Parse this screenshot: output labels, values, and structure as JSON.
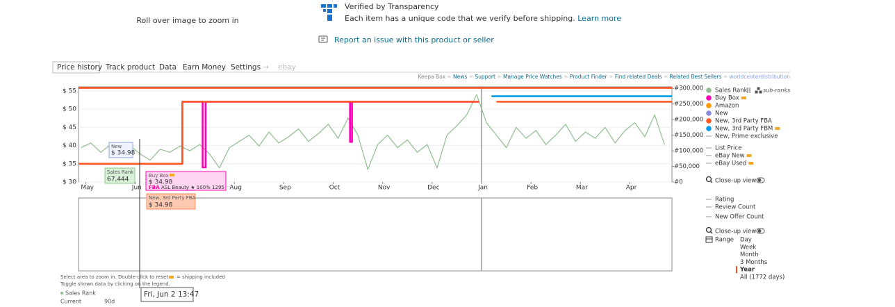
{
  "image_hint": "Roll over image to zoom in",
  "transparency": {
    "title": "Verified by Transparency",
    "text": "Each item has a unique code that we verify before shipping.",
    "link": "Learn more"
  },
  "report_link": "Report an issue with this product or seller",
  "tabs": [
    "Price history",
    "Track product",
    "Data",
    "Earn Money",
    "Settings",
    "→",
    "ebay"
  ],
  "links": [
    "Keepa Box",
    "News",
    "Support",
    "Manage Price Watches",
    "Product Finder",
    "Find related Deals",
    "Related Best Sellers",
    "worldcenterdistribution"
  ],
  "chart_data": {
    "type": "line",
    "xlim": [
      -0.15,
      11.85
    ],
    "xticks": [
      {
        "value": 0,
        "label": "May"
      },
      {
        "value": 1,
        "label": "Jun"
      },
      {
        "value": 3,
        "label": "Aug"
      },
      {
        "value": 4,
        "label": "Sep"
      },
      {
        "value": 5,
        "label": "Oct"
      },
      {
        "value": 6,
        "label": "Nov"
      },
      {
        "value": 7,
        "label": "Dec"
      },
      {
        "value": 8,
        "label": "Jan"
      },
      {
        "value": 9,
        "label": "Feb"
      },
      {
        "value": 10,
        "label": "Mar"
      },
      {
        "value": 11,
        "label": "Apr"
      }
    ],
    "ylim": [
      30,
      56.1
    ],
    "yticks": [
      {
        "value": 30,
        "label": "$ 30"
      },
      {
        "value": 35,
        "label": "$ 35"
      },
      {
        "value": 40,
        "label": "$ 40"
      },
      {
        "value": 45,
        "label": "$ 45"
      },
      {
        "value": 50,
        "label": "$ 50"
      },
      {
        "value": 55,
        "label": "$ 55"
      }
    ],
    "y2lim": [
      0,
      305000
    ],
    "y2ticks": [
      {
        "value": 0,
        "label": "#0"
      },
      {
        "value": 50000,
        "label": "#50,000"
      },
      {
        "value": 100000,
        "label": "#100,000"
      },
      {
        "value": 150000,
        "label": "#150,000"
      },
      {
        "value": 200000,
        "label": "#200,000"
      },
      {
        "value": 250000,
        "label": "#250,000"
      },
      {
        "value": 300000,
        "label": "#300,000"
      }
    ],
    "grid": true,
    "series": [
      {
        "name": "Sales Rank",
        "color": "#8fbc8f",
        "axis": "y2",
        "x": [
          -0.1,
          0.1,
          0.3,
          0.5,
          0.7,
          0.9,
          1.1,
          1.3,
          1.5,
          1.7,
          1.9,
          2.1,
          2.3,
          2.5,
          2.7,
          2.9,
          3.1,
          3.3,
          3.5,
          3.7,
          3.9,
          4.1,
          4.3,
          4.5,
          4.7,
          4.9,
          5.1,
          5.3,
          5.5,
          5.7,
          5.9,
          6.1,
          6.3,
          6.5,
          6.7,
          6.9,
          7.1,
          7.3,
          7.5,
          7.7,
          7.9,
          8.1,
          8.3,
          8.5,
          8.7,
          8.9,
          9.1,
          9.3,
          9.5,
          9.7,
          9.9,
          10.1,
          10.3,
          10.5,
          10.7,
          10.9,
          11.1,
          11.3,
          11.5,
          11.7
        ],
        "values": [
          110000,
          125000,
          95000,
          120000,
          100000,
          115000,
          90000,
          70000,
          105000,
          95000,
          115000,
          100000,
          120000,
          90000,
          45000,
          110000,
          130000,
          150000,
          115000,
          160000,
          125000,
          145000,
          170000,
          130000,
          155000,
          185000,
          140000,
          205000,
          150000,
          40000,
          120000,
          150000,
          110000,
          135000,
          95000,
          120000,
          45000,
          150000,
          180000,
          215000,
          280000,
          190000,
          150000,
          110000,
          175000,
          140000,
          165000,
          120000,
          150000,
          185000,
          130000,
          160000,
          140000,
          175000,
          125000,
          165000,
          190000,
          145000,
          215000,
          120000
        ]
      },
      {
        "name": "Buy Box",
        "color": "#ff00b4",
        "shipping_icon": true,
        "x": [
          -0.15,
          1.95,
          1.95,
          2.36,
          2.36,
          2.42,
          2.42,
          5.34,
          5.34,
          5.38,
          5.38,
          7.95
        ],
        "values": [
          35,
          35,
          52,
          52,
          34,
          34,
          52,
          52,
          41,
          41,
          52,
          52
        ]
      },
      {
        "name": "Amazon",
        "color": "#ff9900",
        "x": [],
        "values": []
      },
      {
        "name": "New",
        "color": "#8888dd",
        "x": [
          1.95,
          1.95
        ],
        "values": [
          35,
          52
        ]
      },
      {
        "name": "New, 3rd Party FBA",
        "color": "#ff5722",
        "x": [
          -0.15,
          1.95,
          1.95,
          7.95,
          8.1,
          8.3,
          11.85,
          11.85,
          -0.15,
          11.85
        ],
        "values": [
          35,
          35,
          52,
          52,
          null,
          52,
          52,
          null,
          55.8,
          55.8
        ]
      },
      {
        "name": "New, 3rd Party FBM",
        "color": "#039be5",
        "shipping_icon": true,
        "x": [
          8.2,
          11.85
        ],
        "values": [
          53.5,
          53.5
        ]
      },
      {
        "name": "New, Prime exclusive",
        "color": "#999999",
        "marker": "dash",
        "x": [],
        "values": []
      },
      {
        "name": "List Price",
        "color": "#999999",
        "marker": "dash",
        "x": [],
        "values": []
      },
      {
        "name": "eBay New",
        "color": "#999999",
        "marker": "dash",
        "shipping_icon": true,
        "x": [],
        "values": []
      },
      {
        "name": "eBay Used",
        "color": "#999999",
        "marker": "dash",
        "shipping_icon": true,
        "x": [],
        "values": []
      }
    ]
  },
  "sub_ranks": "sub-ranks",
  "close_up": "Close-up view",
  "lower_legend": [
    "Rating",
    "Review Count",
    "New Offer Count"
  ],
  "close_up_2": "Close-up view",
  "range": {
    "label": "Range",
    "options": [
      "Day",
      "Week",
      "Month",
      "3 Months",
      "Year",
      "All (1772 days)"
    ],
    "selected": 4
  },
  "tooltips": {
    "new": {
      "label": "New",
      "price": "$ 34.98"
    },
    "sales_rank": {
      "label": "Sales Rank",
      "value": "67,444"
    },
    "buy_box": {
      "label": "Buy Box",
      "price": "$ 34.98",
      "fba": "FBA",
      "seller": "ASL Beauty ★ 100% 1295"
    },
    "fba": {
      "label": "New, 3rd Party FBA",
      "price": "$ 34.98"
    },
    "date": "Fri, Jun 2 13:47"
  },
  "hints": [
    "Select area to zoom in. Double-click to reset.",
    "= shipping included",
    "Toggle shown data by clicking on the legend."
  ],
  "stats": {
    "label": "Sales Rank",
    "columns": [
      "Current",
      "90d"
    ]
  }
}
